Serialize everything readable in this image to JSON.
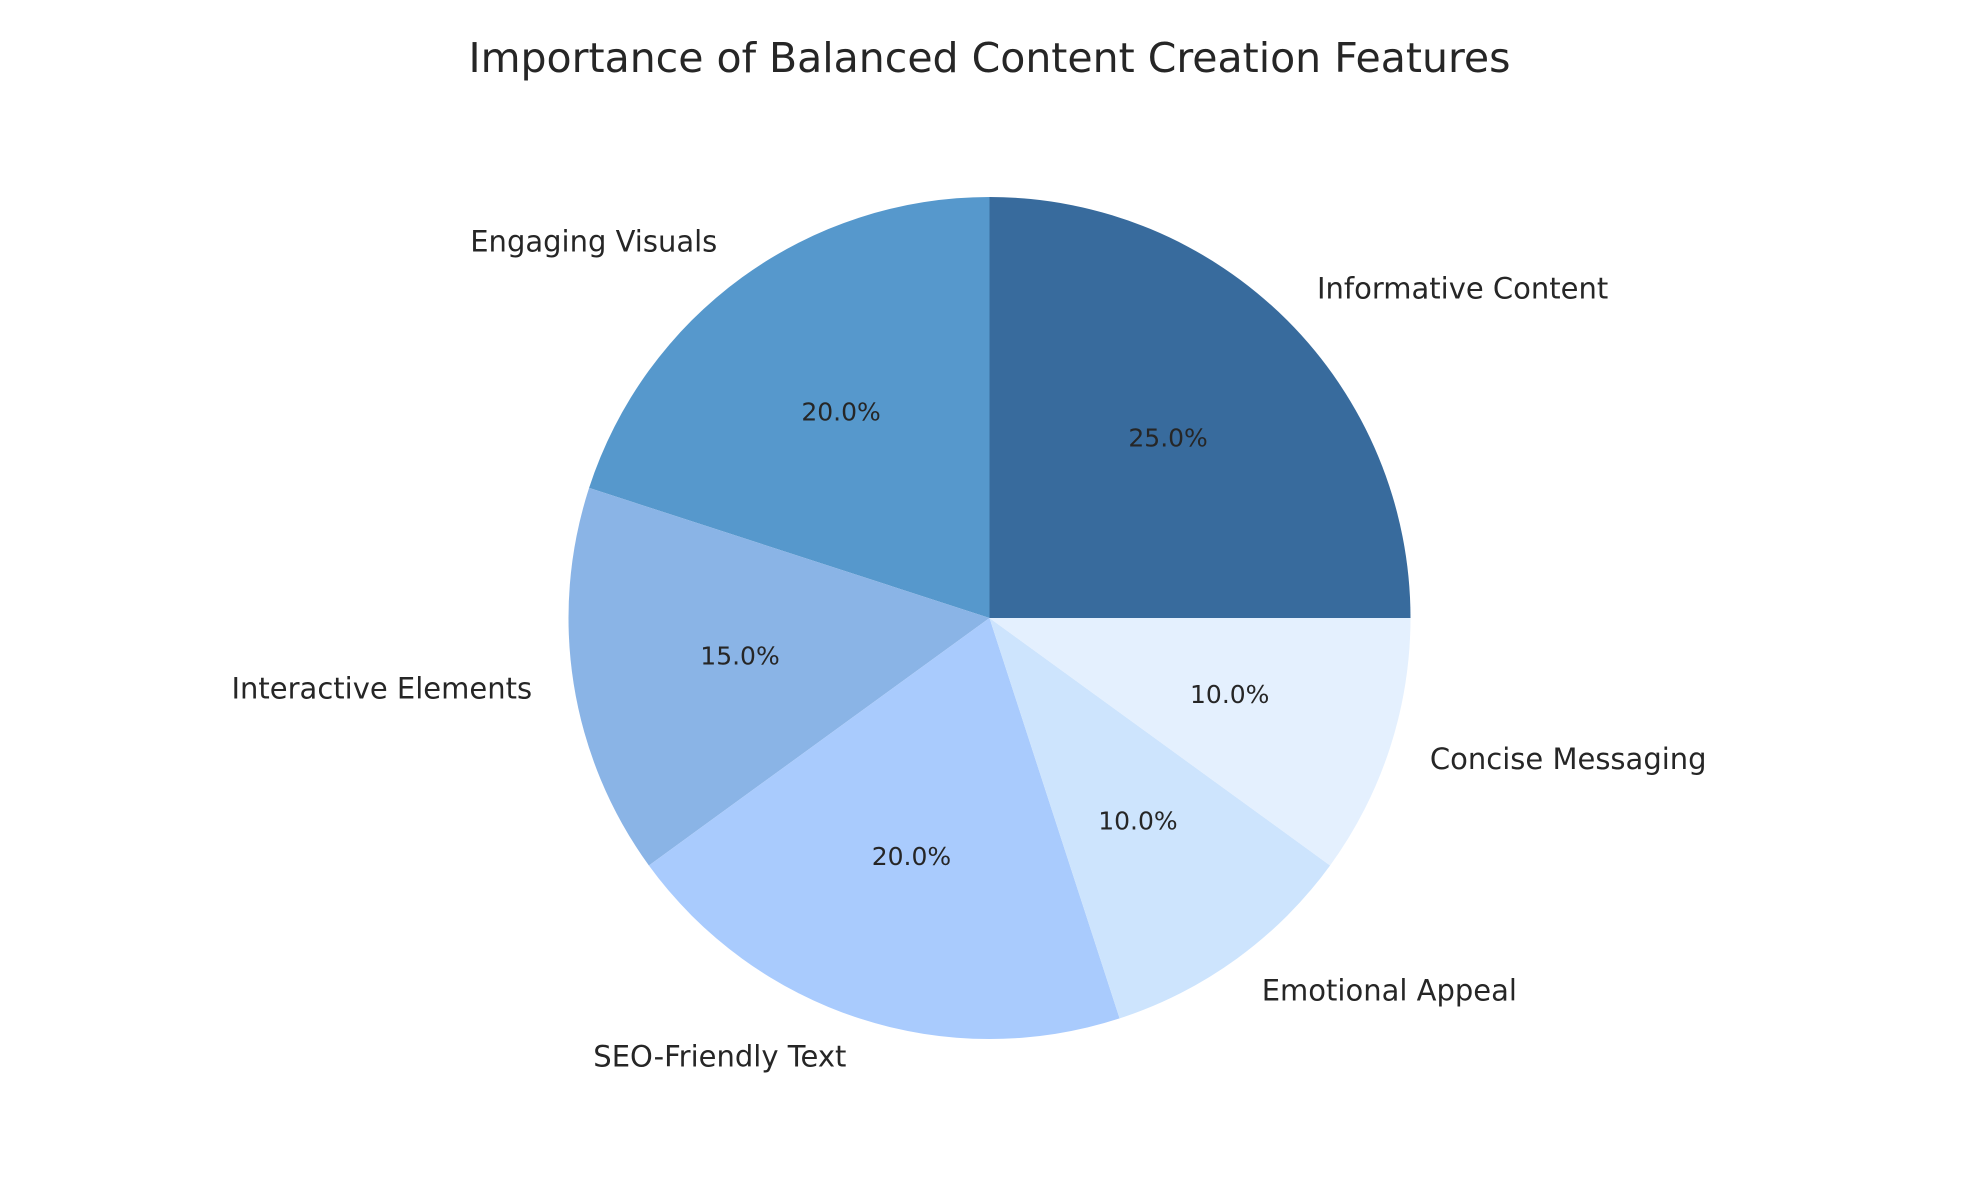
{
  "chart_data": {
    "type": "pie",
    "title": "Importance of Balanced Content Creation Features",
    "categories": [
      "Informative Content",
      "Engaging Visuals",
      "Interactive Elements",
      "SEO-Friendly Text",
      "Emotional Appeal",
      "Concise Messaging"
    ],
    "values": [
      25,
      20,
      15,
      20,
      10,
      10
    ],
    "value_labels": [
      "25.0%",
      "20.0%",
      "15.0%",
      "20.0%",
      "10.0%",
      "10.0%"
    ],
    "colors": [
      "#386b9d",
      "#5698cc",
      "#8ab4e6",
      "#a9cbfd",
      "#cde4fd",
      "#e4f0fe"
    ]
  }
}
